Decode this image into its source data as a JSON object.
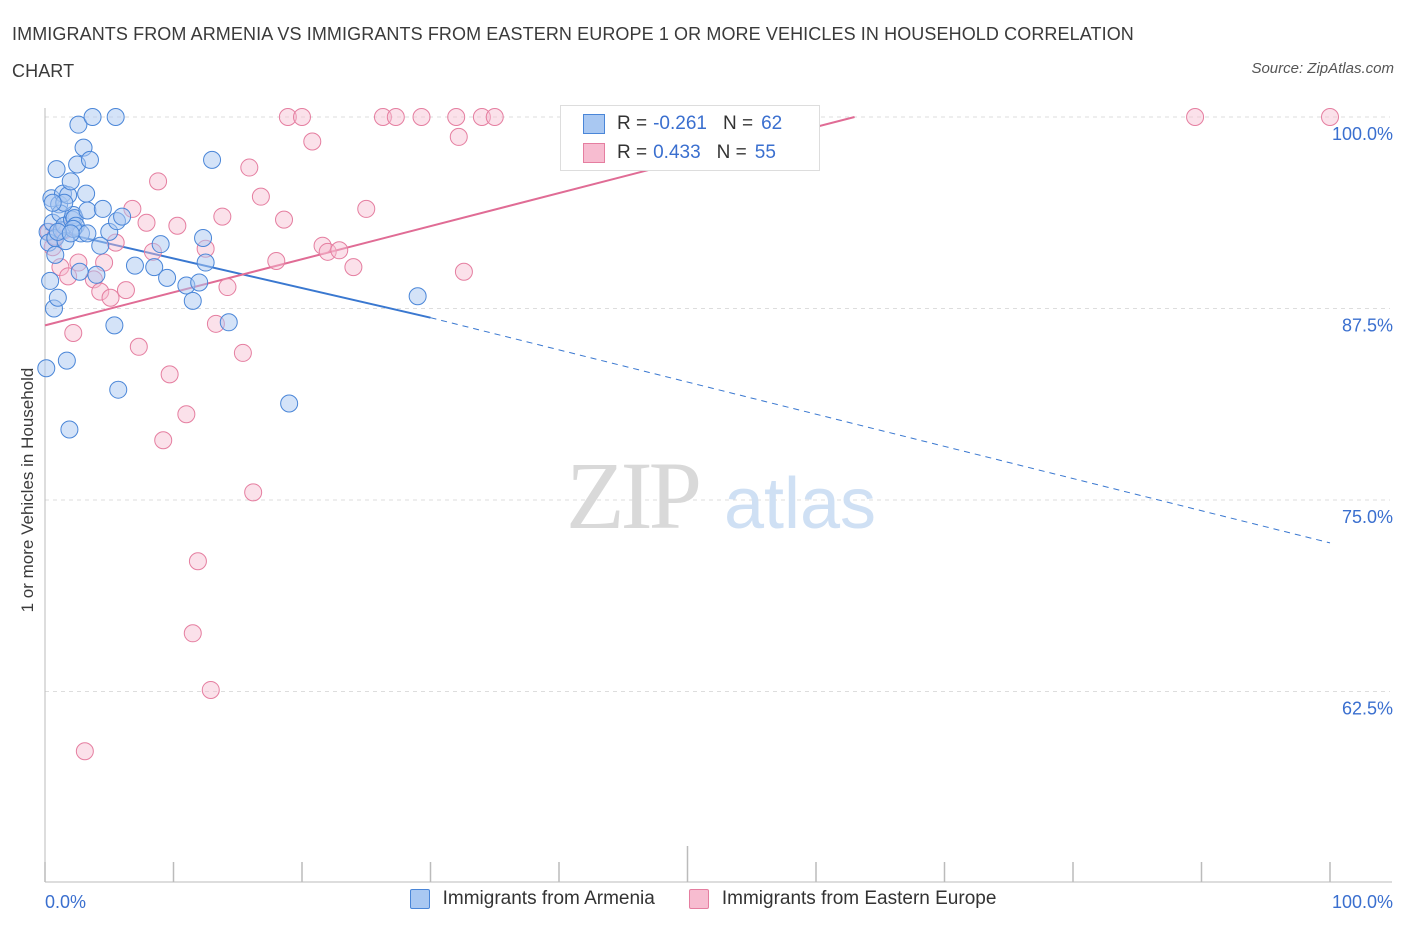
{
  "header": {
    "title": "IMMIGRANTS FROM ARMENIA VS IMMIGRANTS FROM EASTERN EUROPE 1 OR MORE VEHICLES IN HOUSEHOLD CORRELATION CHART",
    "source": "Source: ZipAtlas.com"
  },
  "watermark": {
    "zip": "ZIP",
    "atlas": "atlas"
  },
  "legend": {
    "rows": [
      {
        "r_label": "R =",
        "r_value": "-0.261",
        "n_label": "N =",
        "n_value": "62"
      },
      {
        "r_label": "R =",
        "r_value": "0.433",
        "n_label": "N =",
        "n_value": "55"
      }
    ]
  },
  "colors": {
    "armenia_fill": "#a9c8f2",
    "armenia_stroke": "#4a86d8",
    "armenia_line": "#3a78d0",
    "eastern_fill": "#f7bcd0",
    "eastern_stroke": "#e57ea0",
    "eastern_line": "#e06c95",
    "tick_label": "#3a6fcf",
    "grid": "#dddddd"
  },
  "chart_data": {
    "type": "scatter",
    "title": "IMMIGRANTS FROM ARMENIA VS IMMIGRANTS FROM EASTERN EUROPE 1 OR MORE VEHICLES IN HOUSEHOLD CORRELATION CHART",
    "xlabel": "",
    "ylabel": "1 or more Vehicles in Household",
    "xlim": [
      0,
      100
    ],
    "ylim": [
      50,
      100
    ],
    "x_ticks": [
      0,
      10,
      20,
      30,
      40,
      50,
      60,
      70,
      80,
      90,
      100
    ],
    "x_tick_labels": [
      "0.0%",
      "100.0%"
    ],
    "y_ticks": [
      100,
      87.5,
      75,
      62.5
    ],
    "y_tick_labels": [
      "100.0%",
      "87.5%",
      "75.0%",
      "62.5%"
    ],
    "grid": true,
    "legend_position": "top-center",
    "series": [
      {
        "name": "Immigrants from Armenia",
        "r": -0.261,
        "n": 62,
        "trend": {
          "x0": 0,
          "y0": 92.7,
          "x1": 30,
          "y1": 86.9,
          "dashed_to_x": 100,
          "dashed_to_y": 72.2
        },
        "points": [
          [
            0.1,
            83.6
          ],
          [
            0.2,
            92.5
          ],
          [
            0.3,
            91.8
          ],
          [
            0.4,
            89.3
          ],
          [
            0.5,
            94.7
          ],
          [
            0.6,
            93.1
          ],
          [
            0.7,
            87.5
          ],
          [
            0.8,
            92.1
          ],
          [
            0.9,
            96.6
          ],
          [
            1.0,
            88.2
          ],
          [
            1.1,
            94.3
          ],
          [
            1.2,
            93.7
          ],
          [
            1.3,
            92.6
          ],
          [
            1.4,
            95.0
          ],
          [
            1.5,
            92.9
          ],
          [
            1.6,
            91.9
          ],
          [
            1.7,
            84.1
          ],
          [
            1.8,
            94.9
          ],
          [
            1.9,
            79.6
          ],
          [
            2.0,
            95.8
          ],
          [
            2.1,
            93.3
          ],
          [
            2.2,
            93.6
          ],
          [
            2.3,
            93.4
          ],
          [
            2.4,
            92.9
          ],
          [
            2.5,
            96.9
          ],
          [
            2.6,
            99.5
          ],
          [
            2.7,
            89.9
          ],
          [
            2.8,
            92.4
          ],
          [
            3.0,
            98.0
          ],
          [
            3.2,
            95.0
          ],
          [
            3.3,
            93.9
          ],
          [
            3.5,
            97.2
          ],
          [
            4.0,
            89.7
          ],
          [
            4.5,
            94.0
          ],
          [
            5.0,
            92.5
          ],
          [
            5.4,
            86.4
          ],
          [
            5.5,
            100.0
          ],
          [
            5.6,
            93.2
          ],
          [
            5.7,
            82.2
          ],
          [
            6.0,
            93.5
          ],
          [
            7.0,
            90.3
          ],
          [
            8.5,
            90.2
          ],
          [
            9.0,
            91.7
          ],
          [
            9.5,
            89.5
          ],
          [
            11.0,
            89.0
          ],
          [
            11.5,
            88.0
          ],
          [
            12.0,
            89.2
          ],
          [
            12.3,
            92.1
          ],
          [
            12.5,
            90.5
          ],
          [
            13.0,
            97.2
          ],
          [
            14.3,
            86.6
          ],
          [
            19.0,
            81.3
          ],
          [
            29.0,
            88.3
          ],
          [
            3.7,
            100.0
          ],
          [
            0.8,
            91.0
          ],
          [
            1.5,
            94.4
          ],
          [
            2.2,
            92.7
          ],
          [
            1.0,
            92.5
          ],
          [
            0.6,
            94.4
          ],
          [
            3.3,
            92.4
          ],
          [
            4.3,
            91.6
          ],
          [
            2.0,
            92.4
          ]
        ]
      },
      {
        "name": "Immigrants from Eastern Europe",
        "r": 0.433,
        "n": 55,
        "trend": {
          "x0": 0,
          "y0": 86.4,
          "x1": 63,
          "y1": 100.0
        },
        "points": [
          [
            0.3,
            92.5
          ],
          [
            0.6,
            91.5
          ],
          [
            0.8,
            92.2
          ],
          [
            1.2,
            90.2
          ],
          [
            1.5,
            92.6
          ],
          [
            1.8,
            89.6
          ],
          [
            2.2,
            85.9
          ],
          [
            2.6,
            90.5
          ],
          [
            3.1,
            58.6
          ],
          [
            3.8,
            89.4
          ],
          [
            4.3,
            88.6
          ],
          [
            4.6,
            90.5
          ],
          [
            5.1,
            88.2
          ],
          [
            5.5,
            91.8
          ],
          [
            6.3,
            88.7
          ],
          [
            6.8,
            94.0
          ],
          [
            7.3,
            85.0
          ],
          [
            7.9,
            93.1
          ],
          [
            8.4,
            91.2
          ],
          [
            8.8,
            95.8
          ],
          [
            9.2,
            78.9
          ],
          [
            9.7,
            83.2
          ],
          [
            10.3,
            92.9
          ],
          [
            11.0,
            80.6
          ],
          [
            11.5,
            66.3
          ],
          [
            11.9,
            71.0
          ],
          [
            12.5,
            91.4
          ],
          [
            12.9,
            62.6
          ],
          [
            13.3,
            86.5
          ],
          [
            13.8,
            93.5
          ],
          [
            14.2,
            88.9
          ],
          [
            15.4,
            84.6
          ],
          [
            15.9,
            96.7
          ],
          [
            16.2,
            75.5
          ],
          [
            16.8,
            94.8
          ],
          [
            18.0,
            90.6
          ],
          [
            18.6,
            93.3
          ],
          [
            18.9,
            100.0
          ],
          [
            20.0,
            100.0
          ],
          [
            20.8,
            98.4
          ],
          [
            21.6,
            91.6
          ],
          [
            22.0,
            91.2
          ],
          [
            22.9,
            91.3
          ],
          [
            24.0,
            90.2
          ],
          [
            25.0,
            94.0
          ],
          [
            26.3,
            100.0
          ],
          [
            27.3,
            100.0
          ],
          [
            29.3,
            100.0
          ],
          [
            32.0,
            100.0
          ],
          [
            32.2,
            98.7
          ],
          [
            32.6,
            89.9
          ],
          [
            34.0,
            100.0
          ],
          [
            35.0,
            100.0
          ],
          [
            89.5,
            100.0
          ],
          [
            100.0,
            100.0
          ]
        ]
      }
    ]
  },
  "bottom_legend": [
    {
      "label": "Immigrants from Armenia"
    },
    {
      "label": "Immigrants from Eastern Europe"
    }
  ]
}
